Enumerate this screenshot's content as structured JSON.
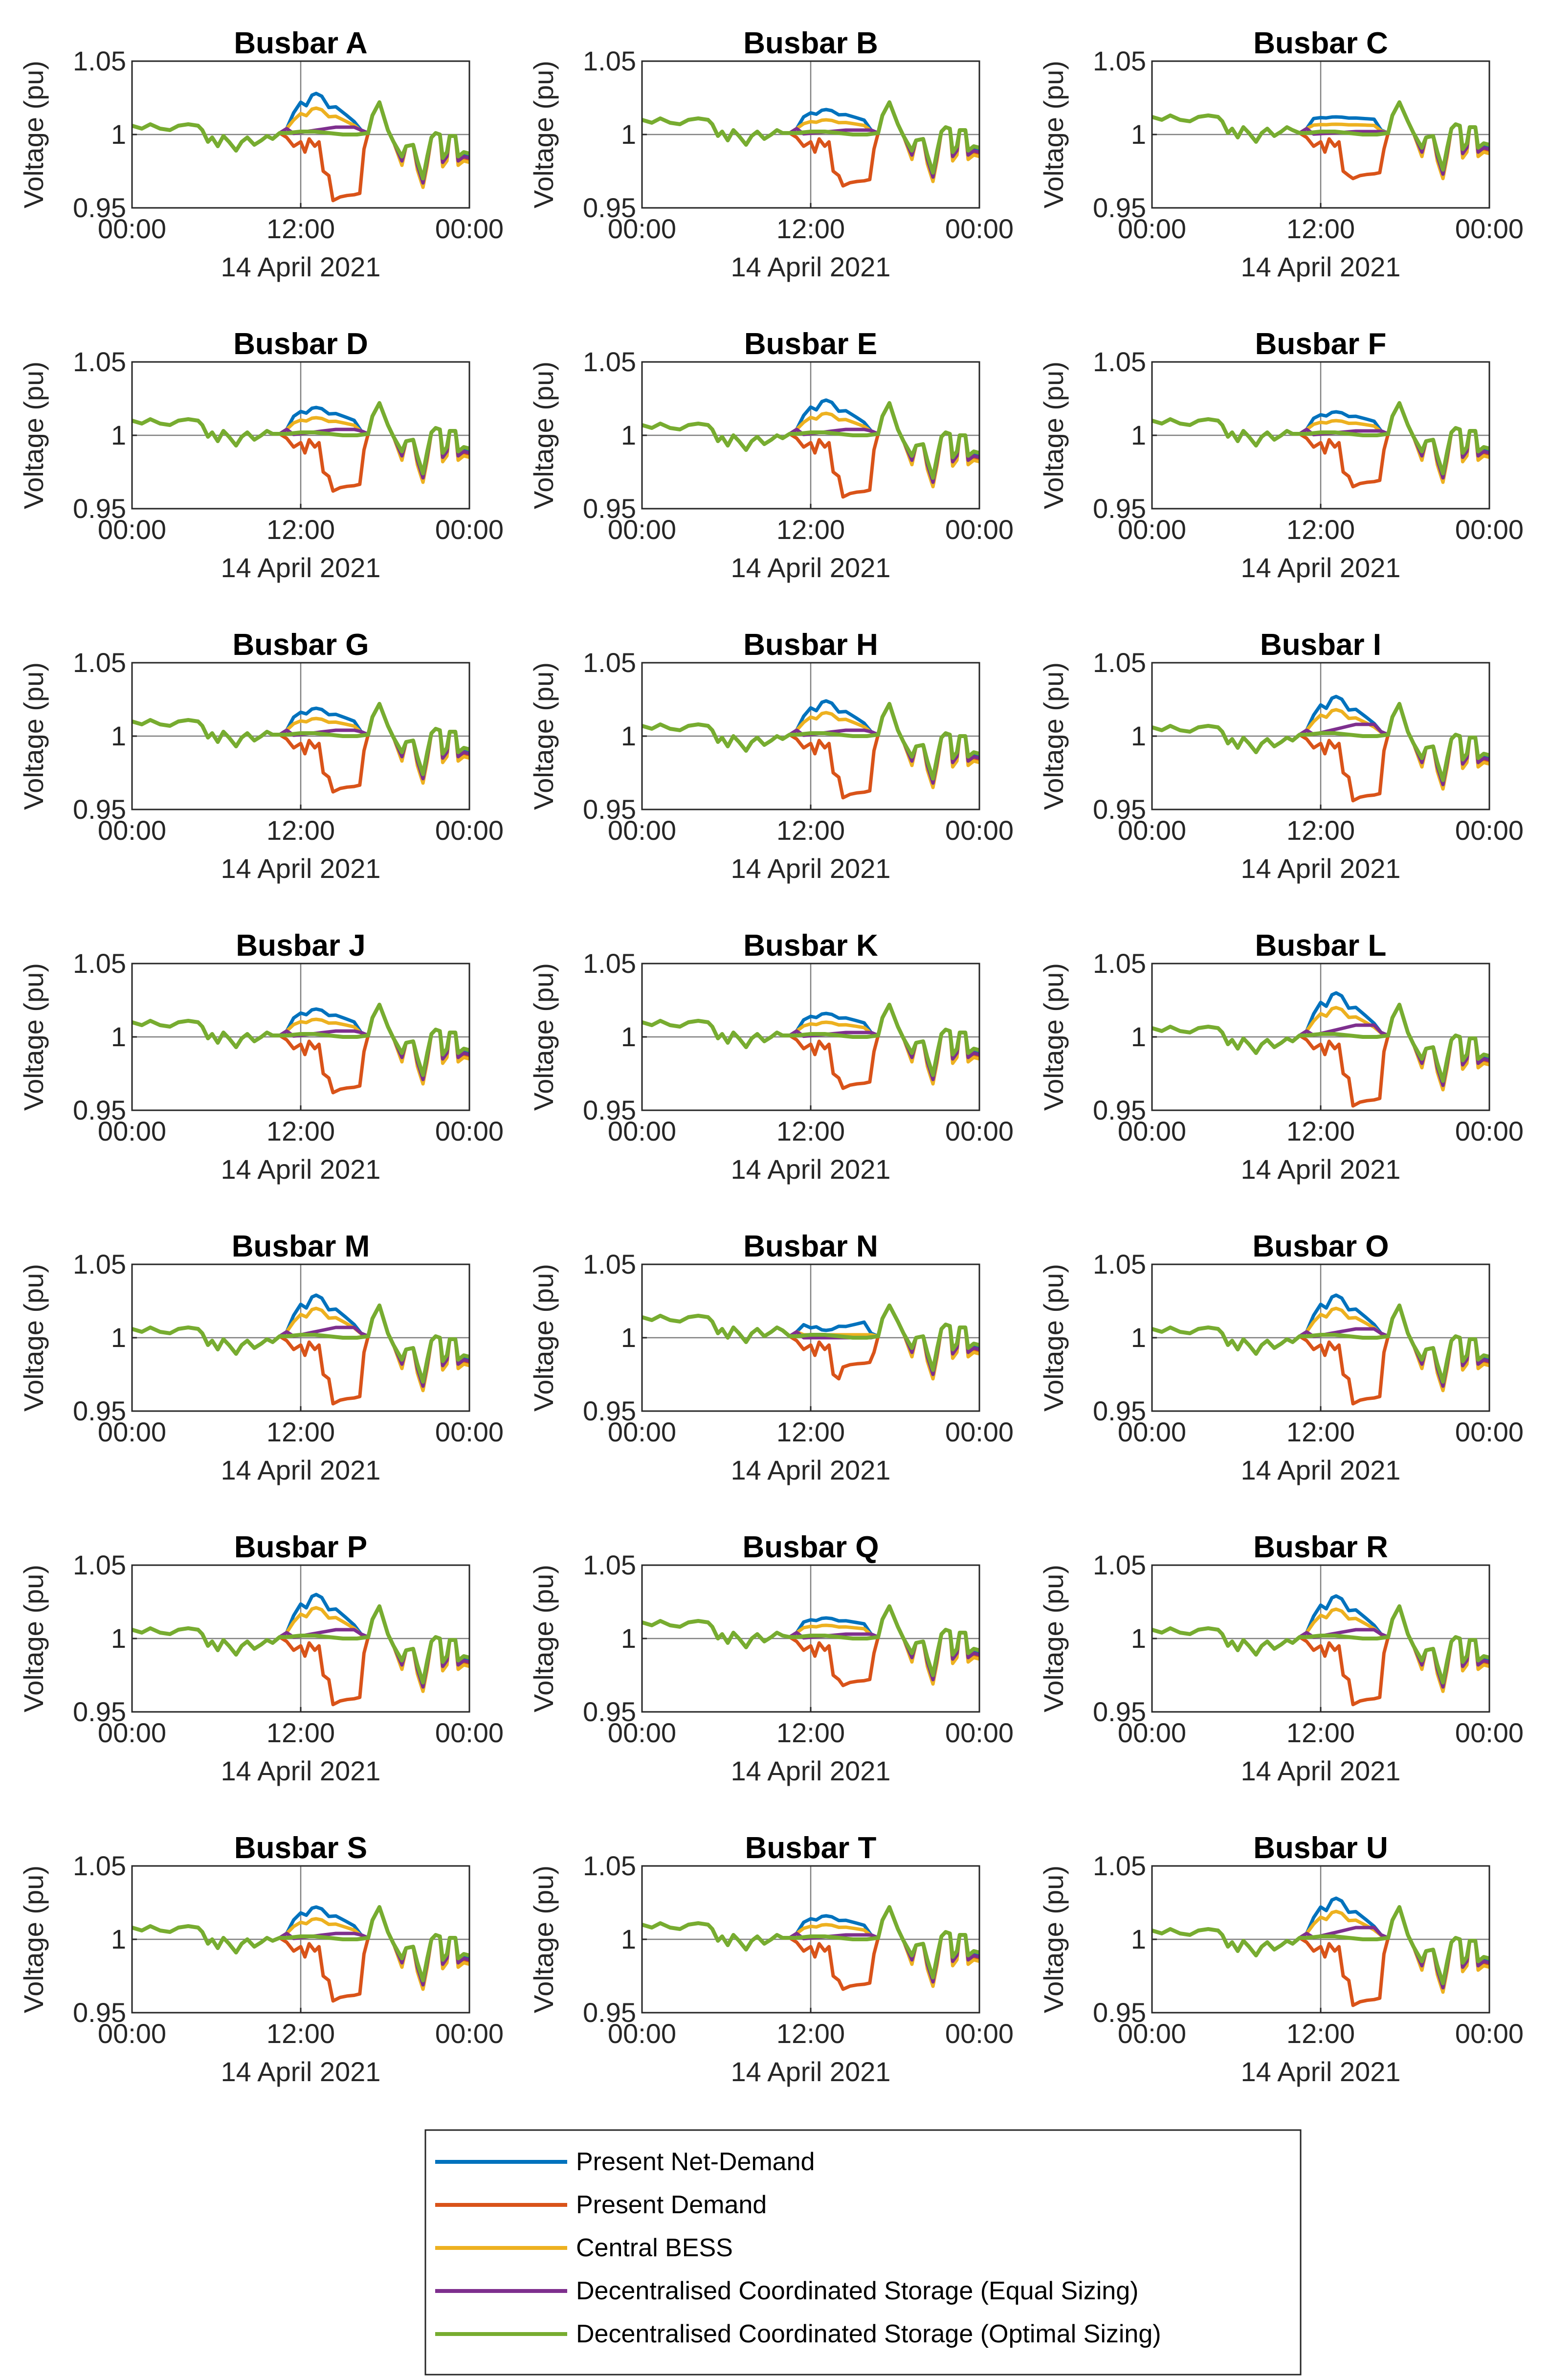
{
  "colors": {
    "present_net_demand": "#0072BD",
    "present_demand": "#D95319",
    "central_bess": "#EDB120",
    "equal_sizing": "#7E2F8E",
    "optimal_sizing": "#77AC30",
    "reference_line": "#808080",
    "axes": "#262626"
  },
  "chart_data": {
    "type": "line",
    "ylabel": "Voltage (pu)",
    "xlabel": "14 April 2021",
    "xticks": [
      "00:00",
      "12:00",
      "00:00"
    ],
    "yticks": [
      "0.95",
      "1",
      "1.05"
    ],
    "ylim": [
      0.95,
      1.05
    ],
    "xlim_hours": [
      0,
      24
    ],
    "reference_line_y": 1,
    "reference_line_x_hours": 12,
    "grid": false,
    "legend_placement": "bottom-center",
    "series_names": [
      "Present Net-Demand",
      "Present Demand",
      "Central BESS",
      "Decentralised Coordinated Storage (Equal Sizing)",
      "Decentralised Coordinated Storage (Optimal Sizing)"
    ],
    "panels": [
      {
        "title": "Busbar A",
        "peak": 1.028,
        "dip": 0.955,
        "central": 1.018,
        "equal": 1.005,
        "level": 1.004
      },
      {
        "title": "Busbar B",
        "peak": 1.017,
        "dip": 0.965,
        "central": 1.01,
        "equal": 1.003,
        "level": 1.008
      },
      {
        "title": "Busbar C",
        "peak": 1.012,
        "dip": 0.97,
        "central": 1.007,
        "equal": 1.002,
        "level": 1.01
      },
      {
        "title": "Busbar D",
        "peak": 1.019,
        "dip": 0.962,
        "central": 1.012,
        "equal": 1.004,
        "level": 1.008
      },
      {
        "title": "Busbar E",
        "peak": 1.024,
        "dip": 0.958,
        "central": 1.015,
        "equal": 1.004,
        "level": 1.005
      },
      {
        "title": "Busbar F",
        "peak": 1.016,
        "dip": 0.965,
        "central": 1.01,
        "equal": 1.003,
        "level": 1.008
      },
      {
        "title": "Busbar G",
        "peak": 1.019,
        "dip": 0.962,
        "central": 1.012,
        "equal": 1.004,
        "level": 1.008
      },
      {
        "title": "Busbar H",
        "peak": 1.024,
        "dip": 0.958,
        "central": 1.016,
        "equal": 1.004,
        "level": 1.005
      },
      {
        "title": "Busbar I",
        "peak": 1.027,
        "dip": 0.956,
        "central": 1.018,
        "equal": 1.008,
        "level": 1.004
      },
      {
        "title": "Busbar J",
        "peak": 1.019,
        "dip": 0.962,
        "central": 1.012,
        "equal": 1.004,
        "level": 1.008
      },
      {
        "title": "Busbar K",
        "peak": 1.016,
        "dip": 0.965,
        "central": 1.01,
        "equal": 1.003,
        "level": 1.008
      },
      {
        "title": "Busbar L",
        "peak": 1.03,
        "dip": 0.953,
        "central": 1.02,
        "equal": 1.008,
        "level": 1.004
      },
      {
        "title": "Busbar M",
        "peak": 1.029,
        "dip": 0.955,
        "central": 1.02,
        "equal": 1.007,
        "level": 1.004
      },
      {
        "title": "Busbar N",
        "peak": 1.005,
        "dip": 0.98,
        "central": 1.002,
        "equal": 1.0,
        "level": 1.012
      },
      {
        "title": "Busbar O",
        "peak": 1.029,
        "dip": 0.955,
        "central": 1.02,
        "equal": 1.006,
        "level": 1.004
      },
      {
        "title": "Busbar P",
        "peak": 1.03,
        "dip": 0.955,
        "central": 1.021,
        "equal": 1.006,
        "level": 1.004
      },
      {
        "title": "Busbar Q",
        "peak": 1.014,
        "dip": 0.968,
        "central": 1.009,
        "equal": 1.003,
        "level": 1.009
      },
      {
        "title": "Busbar R",
        "peak": 1.029,
        "dip": 0.955,
        "central": 1.02,
        "equal": 1.006,
        "level": 1.004
      },
      {
        "title": "Busbar S",
        "peak": 1.022,
        "dip": 0.958,
        "central": 1.014,
        "equal": 1.004,
        "level": 1.006
      },
      {
        "title": "Busbar T",
        "peak": 1.016,
        "dip": 0.966,
        "central": 1.01,
        "equal": 1.003,
        "level": 1.008
      },
      {
        "title": "Busbar U",
        "peak": 1.028,
        "dip": 0.955,
        "central": 1.019,
        "equal": 1.008,
        "level": 1.004
      }
    ]
  }
}
